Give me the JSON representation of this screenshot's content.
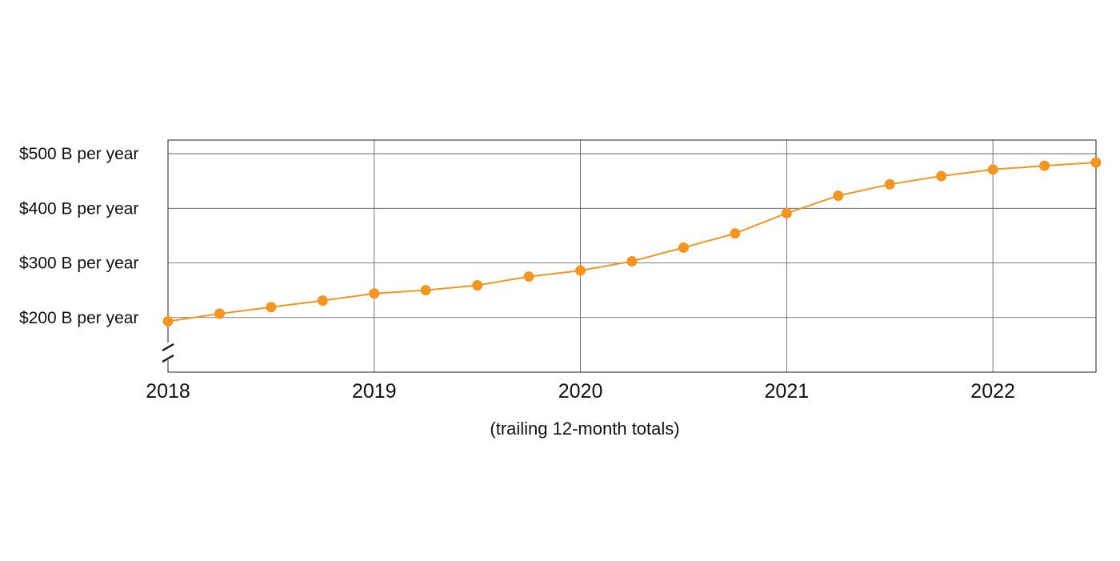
{
  "chart_data": {
    "type": "line",
    "title": "",
    "xlabel": "(trailing 12-month totals)",
    "ylabel": "",
    "x_ticks": [
      "2018",
      "2019",
      "2020",
      "2021",
      "2022"
    ],
    "y_ticks": [
      "$200 B per year",
      "$300 B per year",
      "$400 B per year",
      "$500 B per year"
    ],
    "y_tick_values": [
      200,
      300,
      400,
      500
    ],
    "xlim": [
      2018.0,
      2022.5
    ],
    "ylim": [
      100,
      525
    ],
    "y_axis_break": true,
    "grid": true,
    "series": [
      {
        "color": "#F5951F",
        "x": [
          2018.0,
          2018.25,
          2018.5,
          2018.75,
          2019.0,
          2019.25,
          2019.5,
          2019.75,
          2020.0,
          2020.25,
          2020.5,
          2020.75,
          2021.0,
          2021.25,
          2021.5,
          2021.75,
          2022.0,
          2022.25,
          2022.5
        ],
        "values": [
          193,
          207,
          219,
          231,
          244,
          250,
          259,
          275,
          286,
          303,
          328,
          354,
          391,
          423,
          444,
          459,
          471,
          478,
          484
        ]
      }
    ]
  }
}
